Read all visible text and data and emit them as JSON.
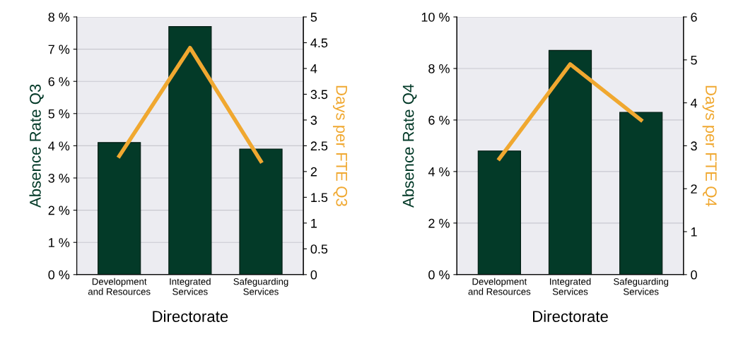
{
  "chart_data": [
    {
      "type": "bar",
      "xlabel": "Directorate",
      "ylabel": "Absence Rate Q3",
      "y2label": "Days per FTE Q3",
      "categories": [
        "Development\nand Resources",
        "Integrated\nServices",
        "Safeguarding\nServices"
      ],
      "series": [
        {
          "color": "#033a28",
          "values": [
            4.1,
            7.7,
            3.9
          ]
        },
        {
          "type": "line",
          "axis": "y2",
          "color": "#f0a830",
          "values": [
            2.3,
            4.4,
            2.2
          ]
        }
      ],
      "ylim": [
        0,
        8
      ],
      "yticks": [
        {
          "value": 0,
          "label": "0 %"
        },
        {
          "value": 1,
          "label": "1 %"
        },
        {
          "value": 2,
          "label": "2 %"
        },
        {
          "value": 3,
          "label": "3 %"
        },
        {
          "value": 4,
          "label": "4 %"
        },
        {
          "value": 5,
          "label": "5 %"
        },
        {
          "value": 6,
          "label": "6 %"
        },
        {
          "value": 7,
          "label": "7 %"
        },
        {
          "value": 8,
          "label": "8 %"
        }
      ],
      "y2lim": [
        0,
        5
      ],
      "y2ticks": [
        0,
        0.5,
        1,
        1.5,
        2,
        2.5,
        3,
        3.5,
        4,
        4.5,
        5
      ],
      "grid": "y",
      "marker": "none",
      "line_style": "solid"
    },
    {
      "type": "bar",
      "xlabel": "Directorate",
      "ylabel": "Absence Rate Q4",
      "y2label": "Days per FTE Q4",
      "categories": [
        "Development\nand Resources",
        "Integrated\nServices",
        "Safeguarding\nServices"
      ],
      "series": [
        {
          "color": "#033a28",
          "values": [
            4.8,
            8.7,
            6.3
          ]
        },
        {
          "type": "line",
          "axis": "y2",
          "color": "#f0a830",
          "values": [
            2.7,
            4.9,
            3.6
          ]
        }
      ],
      "ylim": [
        0,
        10
      ],
      "yticks": [
        {
          "value": 0,
          "label": "0 %"
        },
        {
          "value": 2,
          "label": "2 %"
        },
        {
          "value": 4,
          "label": "4 %"
        },
        {
          "value": 6,
          "label": "6 %"
        },
        {
          "value": 8,
          "label": "8 %"
        },
        {
          "value": 10,
          "label": "10 %"
        }
      ],
      "y2lim": [
        0,
        6
      ],
      "y2ticks": [
        0,
        1,
        2,
        3,
        4,
        5,
        6
      ],
      "grid": "y",
      "marker": "none",
      "line_style": "solid"
    }
  ]
}
